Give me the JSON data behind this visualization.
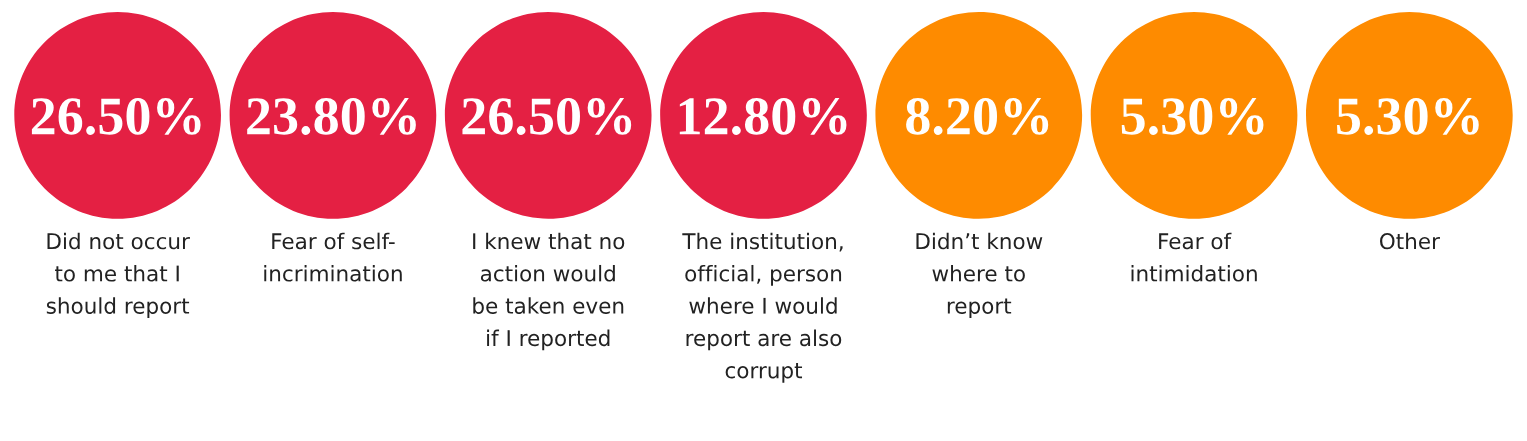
{
  "chart_data": {
    "type": "other",
    "categories": [
      "Did not occur\nto me that I\nshould report",
      "Fear of self-\nincrimination",
      "I knew that no\naction would\nbe taken even\nif I reported",
      "The institution,\nofficial, person\nwhere I would\nreport are also\ncorrupt",
      "Didn’t know\nwhere to\nreport",
      "Fear of\nintimidation",
      "Other"
    ],
    "values": [
      26.5,
      23.8,
      26.5,
      12.8,
      8.2,
      5.3,
      5.3
    ],
    "value_labels": [
      "26.50%",
      "23.80%",
      "26.50%",
      "12.80%",
      "8.20%",
      "5.30%",
      "5.30%"
    ],
    "colors": [
      "#e42043",
      "#e42043",
      "#e42043",
      "#e42043",
      "#fe8b00",
      "#fe8b00",
      "#fe8b00"
    ]
  }
}
